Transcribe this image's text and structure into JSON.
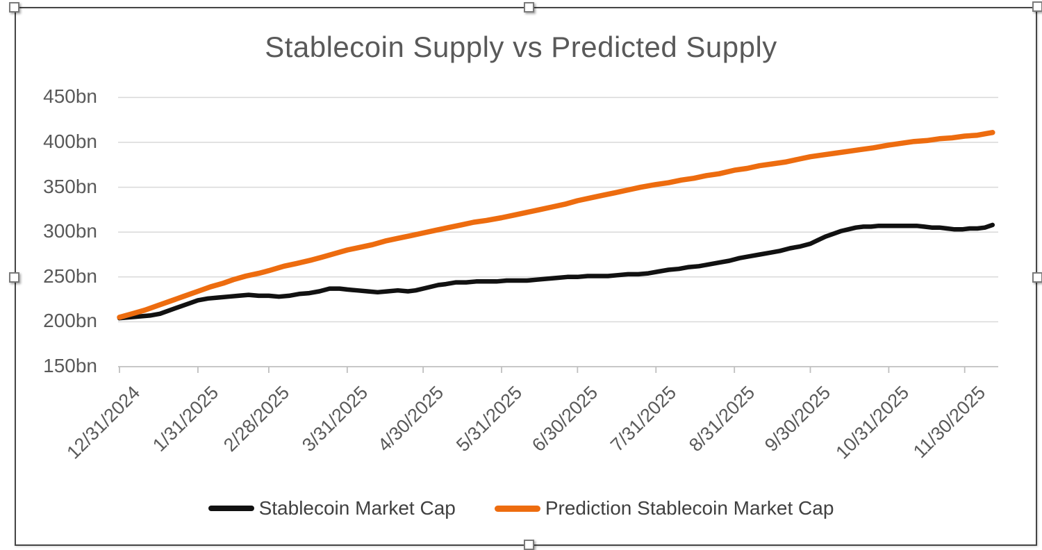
{
  "chart_data": {
    "type": "line",
    "title": "Stablecoin Supply vs Predicted Supply",
    "xlabel": "",
    "ylabel": "",
    "y_unit": "bn",
    "ylim": [
      150,
      450
    ],
    "grid": "horizontal",
    "legend_position": "bottom",
    "x_range": [
      "12/31/2024",
      "12/12/2025"
    ],
    "colors": {
      "gridline": "#D9D9D9",
      "axis_line": "#BFBFBF",
      "tick_label": "#595959",
      "title_text": "#595959",
      "legend_text": "#404040"
    },
    "y_axis": {
      "tick_labels": [
        "450bn",
        "400bn",
        "350bn",
        "300bn",
        "250bn",
        "200bn",
        "150bn"
      ],
      "tick_values": [
        450,
        400,
        350,
        300,
        250,
        200,
        150
      ]
    },
    "x_axis": {
      "ticks": [
        {
          "label": "12/31/2024",
          "day": 0
        },
        {
          "label": "1/31/2025",
          "day": 31
        },
        {
          "label": "2/28/2025",
          "day": 59
        },
        {
          "label": "3/31/2025",
          "day": 90
        },
        {
          "label": "4/30/2025",
          "day": 120
        },
        {
          "label": "5/31/2025",
          "day": 151
        },
        {
          "label": "6/30/2025",
          "day": 181
        },
        {
          "label": "7/31/2025",
          "day": 212
        },
        {
          "label": "8/31/2025",
          "day": 243
        },
        {
          "label": "9/30/2025",
          "day": 273
        },
        {
          "label": "10/31/2025",
          "day": 304
        },
        {
          "label": "11/30/2025",
          "day": 334
        }
      ]
    },
    "monthly_values": {
      "dates": [
        "12/31/2024",
        "1/31/2025",
        "2/28/2025",
        "3/31/2025",
        "4/30/2025",
        "5/31/2025",
        "6/30/2025",
        "7/31/2025",
        "8/31/2025",
        "9/30/2025",
        "10/31/2025",
        "11/30/2025"
      ],
      "stablecoin_market_cap_bn": [
        204,
        224,
        229,
        236,
        237,
        245,
        250,
        258,
        270,
        287,
        306,
        304
      ],
      "prediction_stablecoin_market_cap_bn": [
        205,
        234,
        257,
        280,
        299,
        316,
        335,
        353,
        369,
        384,
        398,
        407
      ]
    },
    "series": [
      {
        "name": "Stablecoin Market Cap",
        "color": "#111111",
        "stroke_width": 6.5,
        "points_day_value": [
          [
            0,
            204
          ],
          [
            4,
            205
          ],
          [
            8,
            206
          ],
          [
            12,
            207
          ],
          [
            16,
            209
          ],
          [
            20,
            213
          ],
          [
            24,
            217
          ],
          [
            28,
            221
          ],
          [
            31,
            224
          ],
          [
            35,
            226
          ],
          [
            39,
            227
          ],
          [
            43,
            228
          ],
          [
            47,
            229
          ],
          [
            51,
            230
          ],
          [
            55,
            229
          ],
          [
            59,
            229
          ],
          [
            63,
            228
          ],
          [
            67,
            229
          ],
          [
            71,
            231
          ],
          [
            75,
            232
          ],
          [
            79,
            234
          ],
          [
            83,
            237
          ],
          [
            87,
            237
          ],
          [
            90,
            236
          ],
          [
            94,
            235
          ],
          [
            98,
            234
          ],
          [
            102,
            233
          ],
          [
            106,
            234
          ],
          [
            110,
            235
          ],
          [
            114,
            234
          ],
          [
            117,
            235
          ],
          [
            120,
            237
          ],
          [
            123,
            239
          ],
          [
            126,
            241
          ],
          [
            129,
            242
          ],
          [
            133,
            244
          ],
          [
            137,
            244
          ],
          [
            141,
            245
          ],
          [
            145,
            245
          ],
          [
            149,
            245
          ],
          [
            153,
            246
          ],
          [
            157,
            246
          ],
          [
            161,
            246
          ],
          [
            165,
            247
          ],
          [
            169,
            248
          ],
          [
            173,
            249
          ],
          [
            177,
            250
          ],
          [
            181,
            250
          ],
          [
            185,
            251
          ],
          [
            189,
            251
          ],
          [
            193,
            251
          ],
          [
            197,
            252
          ],
          [
            201,
            253
          ],
          [
            205,
            253
          ],
          [
            209,
            254
          ],
          [
            213,
            256
          ],
          [
            217,
            258
          ],
          [
            221,
            259
          ],
          [
            225,
            261
          ],
          [
            229,
            262
          ],
          [
            233,
            264
          ],
          [
            237,
            266
          ],
          [
            241,
            268
          ],
          [
            245,
            271
          ],
          [
            249,
            273
          ],
          [
            253,
            275
          ],
          [
            257,
            277
          ],
          [
            261,
            279
          ],
          [
            265,
            282
          ],
          [
            269,
            284
          ],
          [
            273,
            287
          ],
          [
            276,
            291
          ],
          [
            279,
            295
          ],
          [
            282,
            298
          ],
          [
            285,
            301
          ],
          [
            288,
            303
          ],
          [
            291,
            305
          ],
          [
            294,
            306
          ],
          [
            297,
            306
          ],
          [
            300,
            307
          ],
          [
            303,
            307
          ],
          [
            306,
            307
          ],
          [
            309,
            307
          ],
          [
            312,
            307
          ],
          [
            315,
            307
          ],
          [
            318,
            306
          ],
          [
            321,
            305
          ],
          [
            324,
            305
          ],
          [
            327,
            304
          ],
          [
            330,
            303
          ],
          [
            333,
            303
          ],
          [
            336,
            304
          ],
          [
            339,
            304
          ],
          [
            342,
            305
          ],
          [
            344,
            307
          ],
          [
            345,
            308
          ]
        ]
      },
      {
        "name": "Prediction Stablecoin Market Cap",
        "color": "#ED6C0F",
        "stroke_width": 7.5,
        "points_day_value": [
          [
            0,
            205
          ],
          [
            5,
            209
          ],
          [
            10,
            213
          ],
          [
            15,
            218
          ],
          [
            20,
            223
          ],
          [
            25,
            228
          ],
          [
            31,
            234
          ],
          [
            36,
            239
          ],
          [
            41,
            243
          ],
          [
            45,
            247
          ],
          [
            50,
            251
          ],
          [
            55,
            254
          ],
          [
            59,
            257
          ],
          [
            65,
            262
          ],
          [
            70,
            265
          ],
          [
            76,
            269
          ],
          [
            80,
            272
          ],
          [
            85,
            276
          ],
          [
            90,
            280
          ],
          [
            95,
            283
          ],
          [
            100,
            286
          ],
          [
            105,
            290
          ],
          [
            110,
            293
          ],
          [
            115,
            296
          ],
          [
            120,
            299
          ],
          [
            125,
            302
          ],
          [
            130,
            305
          ],
          [
            135,
            308
          ],
          [
            140,
            311
          ],
          [
            145,
            313
          ],
          [
            151,
            316
          ],
          [
            156,
            319
          ],
          [
            161,
            322
          ],
          [
            166,
            325
          ],
          [
            171,
            328
          ],
          [
            176,
            331
          ],
          [
            181,
            335
          ],
          [
            186,
            338
          ],
          [
            191,
            341
          ],
          [
            196,
            344
          ],
          [
            201,
            347
          ],
          [
            206,
            350
          ],
          [
            212,
            353
          ],
          [
            217,
            355
          ],
          [
            222,
            358
          ],
          [
            227,
            360
          ],
          [
            232,
            363
          ],
          [
            237,
            365
          ],
          [
            243,
            369
          ],
          [
            248,
            371
          ],
          [
            253,
            374
          ],
          [
            258,
            376
          ],
          [
            263,
            378
          ],
          [
            268,
            381
          ],
          [
            273,
            384
          ],
          [
            278,
            386
          ],
          [
            283,
            388
          ],
          [
            288,
            390
          ],
          [
            293,
            392
          ],
          [
            298,
            394
          ],
          [
            304,
            397
          ],
          [
            309,
            399
          ],
          [
            314,
            401
          ],
          [
            319,
            402
          ],
          [
            324,
            404
          ],
          [
            329,
            405
          ],
          [
            334,
            407
          ],
          [
            339,
            408
          ],
          [
            343,
            410
          ],
          [
            345,
            411
          ]
        ]
      }
    ]
  }
}
